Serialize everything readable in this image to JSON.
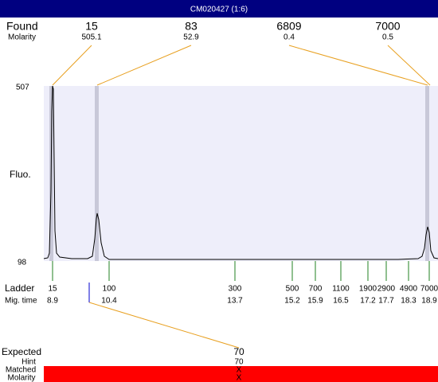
{
  "title": "CM020427 (1:6)",
  "found": {
    "label": "Found",
    "sublabel": "Molarity",
    "peaks": [
      {
        "size": "15",
        "molarity": "505.1"
      },
      {
        "size": "83",
        "molarity": "52.9"
      },
      {
        "size": "6809",
        "molarity": "0.4"
      },
      {
        "size": "7000",
        "molarity": "0.5"
      }
    ]
  },
  "plot": {
    "ylabel": "Fluo.",
    "ymax": "507",
    "ymin": "98"
  },
  "ladder": {
    "label": "Ladder",
    "sublabel": "Mig. time",
    "items": [
      {
        "size": "15",
        "time": "8.9"
      },
      {
        "size": "100",
        "time": "10.4"
      },
      {
        "size": "300",
        "time": "13.7"
      },
      {
        "size": "500",
        "time": "15.2"
      },
      {
        "size": "700",
        "time": "15.9"
      },
      {
        "size": "1100",
        "time": "16.5"
      },
      {
        "size": "1900",
        "time": "17.2"
      },
      {
        "size": "2900",
        "time": "17.7"
      },
      {
        "size": "4900",
        "time": "18.3"
      },
      {
        "size": "7000",
        "time": "18.9"
      }
    ]
  },
  "expected": {
    "label": "Expected",
    "value": "70"
  },
  "hint": {
    "label": "Hint",
    "value": "70"
  },
  "matched": {
    "label": "Matched",
    "value": "X"
  },
  "molarity": {
    "label": "Molarity",
    "value": "X"
  }
}
